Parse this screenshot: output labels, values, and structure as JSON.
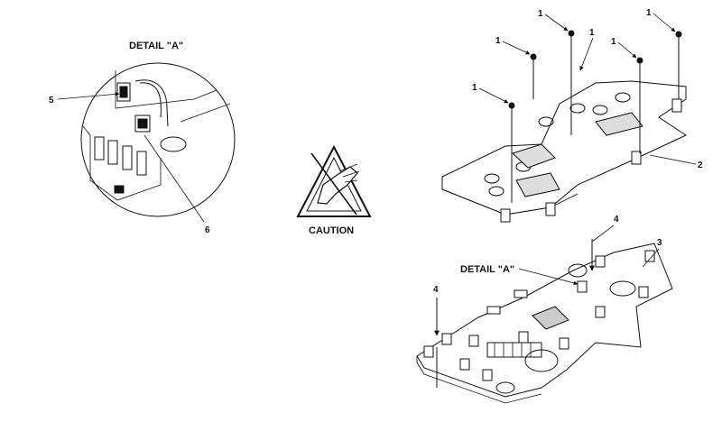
{
  "detail_top_label": "DETAIL \"A\"",
  "detail_board_label": "DETAIL \"A\"",
  "caution_label": "CAUTION",
  "callouts": {
    "c1a": "1",
    "c1b": "1",
    "c1c": "1",
    "c1d": "1",
    "c1e": "1",
    "c1f": "1",
    "c2": "2",
    "c3": "3",
    "c4a": "4",
    "c4b": "4",
    "c5": "5",
    "c6": "6"
  }
}
